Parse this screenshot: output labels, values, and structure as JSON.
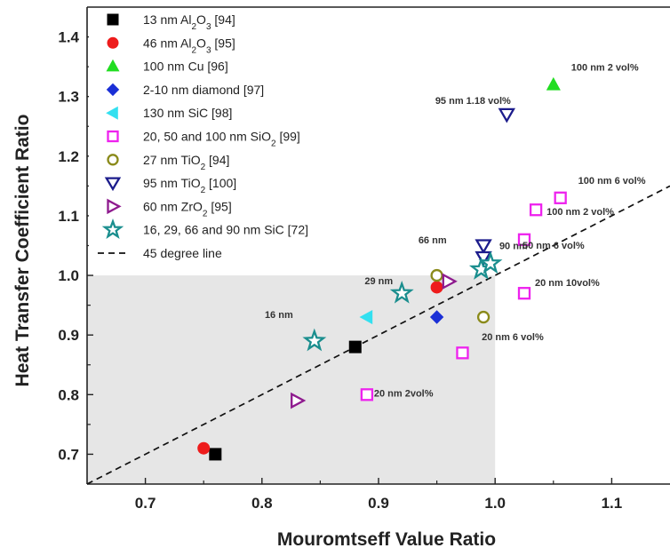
{
  "chart_data": {
    "type": "scatter",
    "xlabel": "Mouromtseff Value Ratio",
    "ylabel": "Heat Transfer Coefficient Ratio",
    "xlim": [
      0.65,
      1.15
    ],
    "ylim": [
      0.65,
      1.45
    ],
    "xticks": [
      "0.7",
      "0.8",
      "0.9",
      "1.0",
      "1.1"
    ],
    "yticks": [
      "0.7",
      "0.8",
      "0.9",
      "1.0",
      "1.1",
      "1.2",
      "1.3",
      "1.4"
    ],
    "shaded_region": {
      "x": [
        0.65,
        1.0
      ],
      "y": [
        0.65,
        1.0
      ]
    },
    "reference_line": {
      "name": "45 degree line",
      "style": "dashed",
      "color": "#111111"
    },
    "legend_position": "top-left",
    "series": [
      {
        "name": "13 nm Al₂O₃ [94]",
        "marker": "square-filled",
        "color": "#000000",
        "points": [
          [
            0.76,
            0.7
          ],
          [
            0.88,
            0.88
          ]
        ]
      },
      {
        "name": "46 nm Al₂O₃ [95]",
        "marker": "circle-filled",
        "color": "#ee1c1c",
        "points": [
          [
            0.75,
            0.71
          ],
          [
            0.95,
            0.98
          ]
        ]
      },
      {
        "name": "100 nm Cu [96]",
        "marker": "triangle-up-filled",
        "color": "#22dd22",
        "points": [
          [
            1.05,
            1.32
          ]
        ]
      },
      {
        "name": "2-10 nm diamond [97]",
        "marker": "diamond-filled",
        "color": "#1a2fd6",
        "points": [
          [
            0.95,
            0.93
          ]
        ]
      },
      {
        "name": "130 nm SiC [98]",
        "marker": "triangle-left-filled",
        "color": "#33e0f0",
        "points": [
          [
            0.89,
            0.93
          ]
        ]
      },
      {
        "name": "20, 50 and 100 nm SiO₂ [99]",
        "marker": "square-open",
        "color": "#ee22ee",
        "points": [
          [
            0.89,
            0.8
          ],
          [
            0.972,
            0.87
          ],
          [
            1.025,
            0.97
          ],
          [
            1.025,
            1.06
          ],
          [
            1.035,
            1.11
          ],
          [
            1.056,
            1.13
          ]
        ]
      },
      {
        "name": "27 nm TiO₂ [94]",
        "marker": "circle-open",
        "color": "#8a8a1a",
        "points": [
          [
            0.95,
            1.0
          ],
          [
            0.99,
            0.93
          ]
        ]
      },
      {
        "name": "95 nm TiO₂ [100]",
        "marker": "triangle-down-open",
        "color": "#1c1c8c",
        "points": [
          [
            1.01,
            1.27
          ],
          [
            0.99,
            1.05
          ],
          [
            0.99,
            1.03
          ]
        ]
      },
      {
        "name": "60 nm ZrO₂ [95]",
        "marker": "triangle-right-open",
        "color": "#8e1a8e",
        "points": [
          [
            0.83,
            0.79
          ],
          [
            0.96,
            0.99
          ]
        ]
      },
      {
        "name": "16, 29, 66 and 90 nm SiC [72]",
        "marker": "star-open",
        "color": "#1a8e8e",
        "points": [
          [
            0.845,
            0.89
          ],
          [
            0.92,
            0.97
          ],
          [
            0.988,
            1.01
          ],
          [
            0.996,
            1.02
          ]
        ]
      }
    ],
    "legend_items": [
      {
        "label": "13 nm Al",
        "sub": "2",
        "mid": "O",
        "sub2": "3",
        "tail": " [94]",
        "marker": "square-filled",
        "color": "#000000"
      },
      {
        "label": "46 nm Al",
        "sub": "2",
        "mid": "O",
        "sub2": "3",
        "tail": " [95]",
        "marker": "circle-filled",
        "color": "#ee1c1c"
      },
      {
        "label": "100 nm Cu [96]",
        "sub": "",
        "mid": "",
        "sub2": "",
        "tail": "",
        "marker": "triangle-up-filled",
        "color": "#22dd22"
      },
      {
        "label": "2-10 nm diamond [97]",
        "sub": "",
        "mid": "",
        "sub2": "",
        "tail": "",
        "marker": "diamond-filled",
        "color": "#1a2fd6"
      },
      {
        "label": "130 nm SiC [98]",
        "sub": "",
        "mid": "",
        "sub2": "",
        "tail": "",
        "marker": "triangle-left-filled",
        "color": "#33e0f0"
      },
      {
        "label": "20, 50 and 100 nm SiO",
        "sub": "2",
        "mid": "",
        "sub2": "",
        "tail": " [99]",
        "marker": "square-open",
        "color": "#ee22ee"
      },
      {
        "label": "27 nm TiO",
        "sub": "2",
        "mid": "",
        "sub2": "",
        "tail": " [94]",
        "marker": "circle-open",
        "color": "#8a8a1a"
      },
      {
        "label": "95 nm TiO",
        "sub": "2",
        "mid": "",
        "sub2": "",
        "tail": " [100]",
        "marker": "triangle-down-open",
        "color": "#1c1c8c"
      },
      {
        "label": "60 nm ZrO",
        "sub": "2",
        "mid": "",
        "sub2": "",
        "tail": " [95]",
        "marker": "triangle-right-open",
        "color": "#8e1a8e"
      },
      {
        "label": "16, 29, 66 and 90 nm SiC [72]",
        "sub": "",
        "mid": "",
        "sub2": "",
        "tail": "",
        "marker": "star-open",
        "color": "#1a8e8e"
      },
      {
        "label": "45 degree line",
        "sub": "",
        "mid": "",
        "sub2": "",
        "tail": "",
        "marker": "dash-line",
        "color": "#111111"
      }
    ],
    "annotations": [
      {
        "text": "100 nm 2 vol%",
        "x": 1.05,
        "y": 1.32
      },
      {
        "text": "95 nm 1.18 vol%",
        "x": 1.01,
        "y": 1.27
      },
      {
        "text": "100 nm 6 vol%",
        "x": 1.056,
        "y": 1.13
      },
      {
        "text": "100 nm 2 vol%",
        "x": 1.035,
        "y": 1.11
      },
      {
        "text": "50 nm 6 vol%",
        "x": 1.025,
        "y": 1.06
      },
      {
        "text": "20 nm 10vol%",
        "x": 1.025,
        "y": 0.97
      },
      {
        "text": "20 nm 6 vol%",
        "x": 0.99,
        "y": 0.93
      },
      {
        "text": "20 nm 2vol%",
        "x": 0.89,
        "y": 0.8
      },
      {
        "text": "90 nm",
        "x": 0.996,
        "y": 1.02
      },
      {
        "text": "66 nm",
        "x": 0.96,
        "y": 1.03
      },
      {
        "text": "29 nm",
        "x": 0.92,
        "y": 0.97
      },
      {
        "text": "16 nm",
        "x": 0.845,
        "y": 0.89
      }
    ]
  }
}
